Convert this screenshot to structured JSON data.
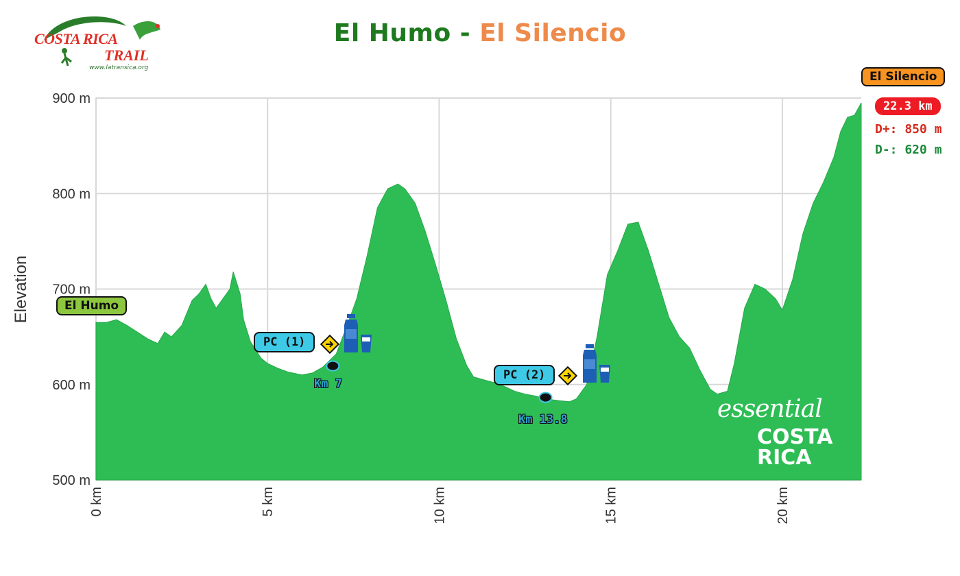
{
  "header": {
    "title_start": "El Humo",
    "title_sep": " - ",
    "title_end": "El Silencio",
    "logo": {
      "line1": "COSTA RICA",
      "line2": "TRAIL",
      "url": "www.latransica.org"
    }
  },
  "summary": {
    "finish_label": "El Silencio",
    "distance": "22.3 km",
    "gain": "D+: 850 m",
    "loss": "D-: 620 m",
    "start_label": "El Humo"
  },
  "checkpoints": [
    {
      "label": "PC (1)",
      "km_label": "Km 7"
    },
    {
      "label": "PC (2)",
      "km_label": "Km 13.8"
    }
  ],
  "brand": {
    "line1": "essential",
    "line2": "COSTA",
    "line3": "RICA"
  },
  "colors": {
    "fill": "#2ebd55",
    "grid": "#d8d8d8",
    "start_tag": "#8dc63f",
    "finish_tag": "#f7931e",
    "distance_tag": "#ed1c24",
    "gain": "#d62c1f",
    "loss": "#1f8a3c",
    "checkpoint": "#3ec9e6"
  },
  "chart_data": {
    "type": "area",
    "title": "",
    "xlabel": "",
    "ylabel": "Elevation",
    "xlim": [
      0,
      22.3
    ],
    "ylim": [
      500,
      900
    ],
    "x_ticks": [
      0,
      5,
      10,
      15,
      20
    ],
    "x_tick_labels": [
      "0 km",
      "5 km",
      "10 km",
      "15 km",
      "20 km"
    ],
    "y_ticks": [
      500,
      600,
      700,
      800,
      900
    ],
    "y_tick_labels": [
      "500 m",
      "600 m",
      "700 m",
      "800 m",
      "900 m"
    ],
    "grid": true,
    "series": [
      {
        "x": [
          0,
          0.3,
          0.6,
          0.9,
          1.2,
          1.5,
          1.8,
          2.0,
          2.2,
          2.5,
          2.8,
          3.0,
          3.2,
          3.35,
          3.5,
          3.7,
          3.9,
          4.0,
          4.2,
          4.3,
          4.5,
          4.8,
          5.0,
          5.3,
          5.6,
          6.0,
          6.3,
          6.6,
          7.0,
          7.3,
          7.6,
          7.9,
          8.2,
          8.5,
          8.8,
          9.0,
          9.3,
          9.6,
          9.9,
          10.2,
          10.5,
          10.8,
          11.0,
          11.3,
          11.6,
          11.9,
          12.2,
          12.5,
          12.8,
          13.1,
          13.5,
          13.8,
          14.0,
          14.3,
          14.6,
          14.9,
          15.2,
          15.5,
          15.8,
          16.1,
          16.4,
          16.7,
          17.0,
          17.3,
          17.6,
          17.9,
          18.1,
          18.4,
          18.6,
          18.9,
          19.2,
          19.5,
          19.8,
          20.0,
          20.3,
          20.6,
          20.9,
          21.2,
          21.5,
          21.7,
          21.9,
          22.1,
          22.3
        ],
        "y": [
          665,
          665,
          668,
          662,
          655,
          648,
          643,
          655,
          650,
          662,
          688,
          695,
          705,
          690,
          680,
          690,
          700,
          718,
          695,
          668,
          645,
          628,
          622,
          617,
          613,
          610,
          612,
          618,
          632,
          660,
          690,
          735,
          785,
          805,
          810,
          805,
          790,
          760,
          725,
          688,
          648,
          620,
          608,
          605,
          602,
          598,
          593,
          590,
          588,
          585,
          583,
          582,
          585,
          600,
          650,
          715,
          740,
          768,
          770,
          740,
          705,
          670,
          650,
          638,
          615,
          595,
          590,
          593,
          622,
          680,
          705,
          700,
          690,
          678,
          710,
          758,
          790,
          812,
          838,
          865,
          880,
          882,
          895
        ]
      }
    ],
    "annotations": [
      {
        "label": "PC (1)",
        "x": 6.9,
        "y": 618
      },
      {
        "label": "PC (2)",
        "x": 13.1,
        "y": 585
      }
    ]
  }
}
